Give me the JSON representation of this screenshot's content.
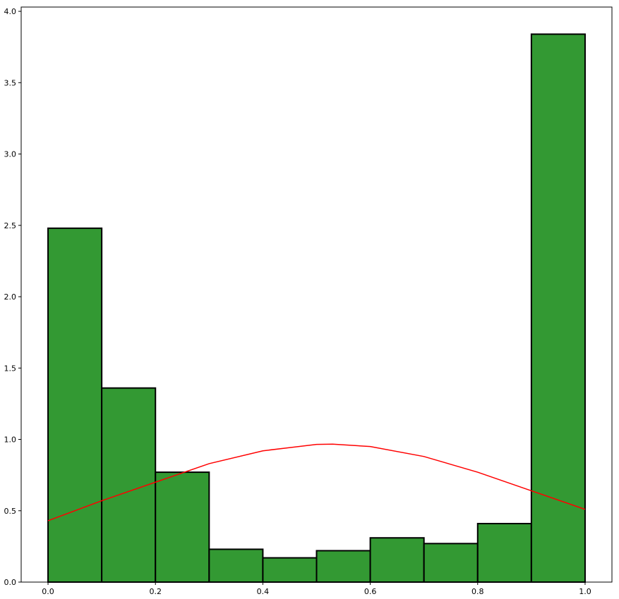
{
  "chart_data": {
    "type": "bar",
    "title": "",
    "xlabel": "",
    "ylabel": "",
    "bin_edges": [
      0.0,
      0.1,
      0.2,
      0.3,
      0.4,
      0.5,
      0.6,
      0.7,
      0.8,
      0.9,
      1.0
    ],
    "values": [
      2.48,
      1.36,
      0.77,
      0.23,
      0.17,
      0.22,
      0.31,
      0.27,
      0.41,
      3.84
    ],
    "xlim": [
      -0.05,
      1.05
    ],
    "ylim": [
      0.0,
      4.03
    ],
    "xticks": [
      0.0,
      0.2,
      0.4,
      0.6,
      0.8,
      1.0
    ],
    "xtick_labels": [
      "0.0",
      "0.2",
      "0.4",
      "0.6",
      "0.8",
      "1.0"
    ],
    "yticks": [
      0.0,
      0.5,
      1.0,
      1.5,
      2.0,
      2.5,
      3.0,
      3.5,
      4.0
    ],
    "ytick_labels": [
      "0.0",
      "0.5",
      "1.0",
      "1.5",
      "2.0",
      "2.5",
      "3.0",
      "3.5",
      "4.0"
    ],
    "bar_color": "#339933",
    "bar_edge_color": "#000000",
    "curve": {
      "color": "#ff0000",
      "x": [
        0.0,
        0.1,
        0.2,
        0.3,
        0.4,
        0.5,
        0.53,
        0.6,
        0.7,
        0.8,
        0.9,
        1.0
      ],
      "y": [
        0.43,
        0.57,
        0.7,
        0.83,
        0.92,
        0.965,
        0.967,
        0.95,
        0.88,
        0.77,
        0.64,
        0.51
      ]
    },
    "grid": false,
    "legend": "none"
  }
}
